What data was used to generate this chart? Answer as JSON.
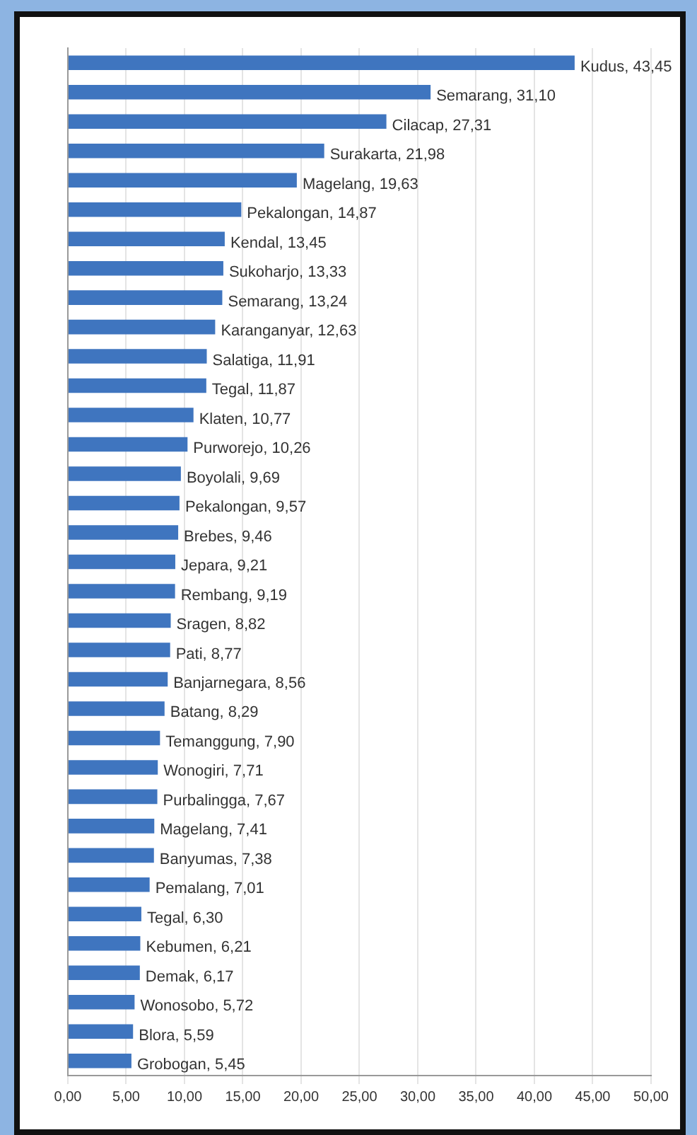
{
  "chart_data": {
    "type": "bar",
    "orientation": "horizontal",
    "categories": [
      null,
      null,
      null,
      null,
      null,
      null,
      null,
      null,
      null,
      null,
      null,
      null,
      null,
      null,
      null,
      null,
      null,
      null,
      null,
      null,
      null,
      null,
      null,
      null,
      null,
      null,
      null,
      null,
      null,
      null,
      null,
      null,
      null,
      null,
      null
    ],
    "values": [
      43.45,
      31.1,
      27.31,
      21.98,
      19.63,
      14.87,
      13.45,
      13.33,
      13.24,
      12.63,
      11.91,
      11.87,
      10.77,
      10.26,
      9.69,
      9.57,
      9.46,
      9.21,
      9.19,
      8.82,
      8.77,
      8.56,
      8.29,
      7.9,
      7.71,
      7.67,
      7.41,
      7.38,
      7.01,
      6.3,
      6.21,
      6.17,
      5.72,
      5.59,
      5.45
    ],
    "value_labels": [
      "Kudus, 43,45",
      "Semarang, 31,10",
      "Cilacap, 27,31",
      "Surakarta, 21,98",
      "Magelang, 19,63",
      "Pekalongan, 14,87",
      "Kendal, 13,45",
      "Sukoharjo, 13,33",
      "Semarang, 13,24",
      "Karanganyar, 12,63",
      "Salatiga, 11,91",
      "Tegal, 11,87",
      "Klaten, 10,77",
      "Purworejo, 10,26",
      "Boyolali, 9,69",
      "Pekalongan, 9,57",
      "Brebes, 9,46",
      "Jepara, 9,21",
      "Rembang, 9,19",
      "Sragen, 8,82",
      "Pati, 8,77",
      "Banjarnegara, 8,56",
      "Batang, 8,29",
      "Temanggung, 7,90",
      "Wonogiri, 7,71",
      "Purbalingga, 7,67",
      "Magelang, 7,41",
      "Banyumas, 7,38",
      "Pemalang, 7,01",
      "Tegal, 6,30",
      "Kebumen, 6,21",
      "Demak, 6,17",
      "Wonosobo, 5,72",
      "Blora, 5,59",
      "Grobogan, 5,45"
    ],
    "color": "#3f75bf",
    "xlim": [
      0,
      50
    ],
    "xticks": [
      {
        "value": 0,
        "label": "0,00"
      },
      {
        "value": 5,
        "label": "5,00"
      },
      {
        "value": 10,
        "label": "10,00"
      },
      {
        "value": 15,
        "label": "15,00"
      },
      {
        "value": 20,
        "label": "20,00"
      },
      {
        "value": 25,
        "label": "25,00"
      },
      {
        "value": 30,
        "label": "30,00"
      },
      {
        "value": 35,
        "label": "35,00"
      },
      {
        "value": 40,
        "label": "40,00"
      },
      {
        "value": 45,
        "label": "45,00"
      },
      {
        "value": 50,
        "label": "50,00"
      }
    ],
    "grid": "x",
    "tick_labels": "x",
    "legend": false
  }
}
